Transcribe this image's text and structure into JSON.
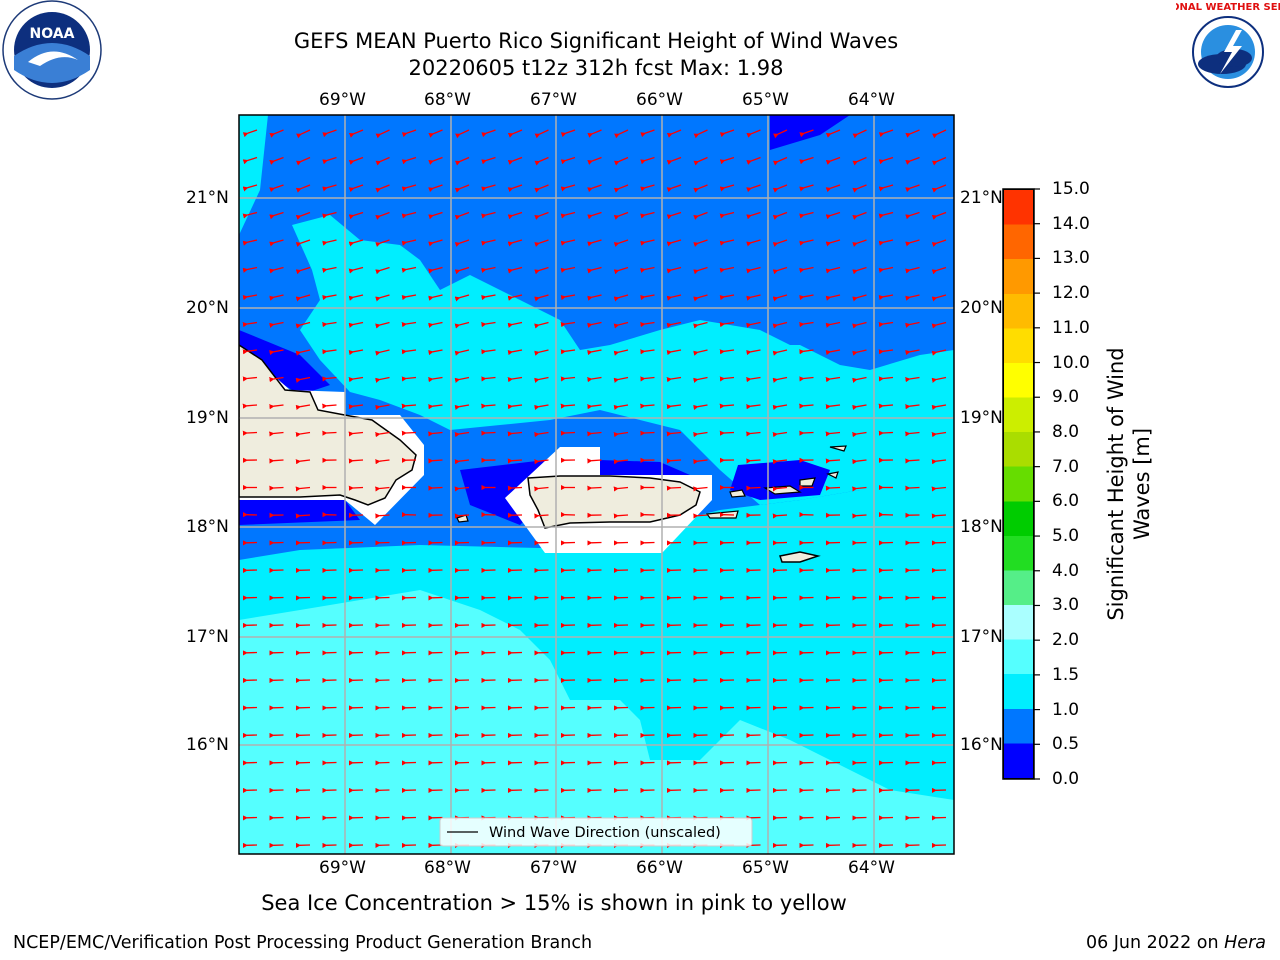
{
  "title": {
    "line1": "GEFS MEAN Puerto Rico Significant Height of Wind Waves",
    "line2": "20220605 t12z 312h fcst   Max: 1.98"
  },
  "map": {
    "lon_ticks": [
      "69°W",
      "68°W",
      "67°W",
      "66°W",
      "65°W",
      "64°W"
    ],
    "lat_ticks": [
      "21°N",
      "20°N",
      "19°N",
      "18°N",
      "17°N",
      "16°N"
    ],
    "lon_range": [
      -70.0,
      -63.25
    ],
    "lat_range": [
      15.0,
      21.75
    ],
    "legend_label": "Wind Wave Direction (unscaled)",
    "land_color": "#efedde",
    "arrow_color": "#ff0000"
  },
  "colorbar": {
    "label": "Significant Height of Wind Waves [m]",
    "label_line1": "Significant Height of Wind",
    "label_line2": "Waves [m]",
    "ticks": [
      "0.0",
      "0.5",
      "1.0",
      "1.5",
      "2.0",
      "3.0",
      "4.0",
      "5.0",
      "6.0",
      "7.0",
      "8.0",
      "9.0",
      "10.0",
      "11.0",
      "12.0",
      "13.0",
      "14.0",
      "15.0"
    ],
    "colors": [
      "#0000ff",
      "#0077ff",
      "#00eeff",
      "#55ffff",
      "#aaffff",
      "#55ee88",
      "#22dd22",
      "#00cc00",
      "#66dd00",
      "#aadd00",
      "#ccee00",
      "#ffff00",
      "#ffdd00",
      "#ffbb00",
      "#ff9900",
      "#ff6600",
      "#ff3300",
      "#ff0000"
    ]
  },
  "subtitle": "Sea Ice Concentration > 15% is shown in pink to yellow",
  "footer": {
    "left": "NCEP/EMC/Verification Post Processing Product Generation Branch",
    "right_date": "06 Jun 2022 on ",
    "right_host": "Hera"
  },
  "logos": {
    "noaa_text": "NOAA",
    "nws_text": "NATIONAL WEATHER SERVICE"
  }
}
